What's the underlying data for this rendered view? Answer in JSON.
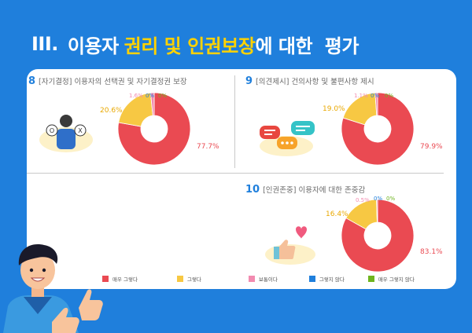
{
  "title": {
    "roman": "III.",
    "part1": "이용자",
    "highlight1": "권리 및 인권보장",
    "part2": "에 대한  평가"
  },
  "colors": {
    "very_yes": "#ea4a52",
    "yes": "#f7c843",
    "neutral": "#f28bb0",
    "no": "#1f7fdc",
    "very_no": "#6fb41e",
    "accent": "#1f7fdc"
  },
  "legend": [
    {
      "label": "매우 그렇다",
      "color": "#ea4a52"
    },
    {
      "label": "그렇다",
      "color": "#f7c843"
    },
    {
      "label": "보통이다",
      "color": "#f28bb0"
    },
    {
      "label": "그렇지 않다",
      "color": "#1f7fdc"
    },
    {
      "label": "매우 그렇지 않다",
      "color": "#6fb41e"
    }
  ],
  "sections": [
    {
      "num": "8",
      "text": "[자기결정] 이용자의 선택권 및 자기결정권 보장"
    },
    {
      "num": "9",
      "text": "[의견제시] 건의사항 및 불편사항 제시"
    },
    {
      "num": "10",
      "text": "[인권존중] 이용자에 대한 존중감"
    }
  ],
  "chart_data": [
    {
      "type": "pie",
      "categories": [
        "매우 그렇다",
        "그렇다",
        "보통이다",
        "그렇지 않다",
        "매우 그렇지 않다"
      ],
      "values": [
        77.7,
        20.6,
        1.6,
        0,
        0
      ],
      "labels": [
        "77.7%",
        "20.6%",
        "1.6%",
        "0%",
        "0%"
      ]
    },
    {
      "type": "pie",
      "categories": [
        "매우 그렇다",
        "그렇다",
        "보통이다",
        "그렇지 않다",
        "매우 그렇지 않다"
      ],
      "values": [
        79.9,
        19.0,
        1.1,
        0,
        0
      ],
      "labels": [
        "79.9%",
        "19.0%",
        "1.1%",
        "0%",
        "0%"
      ]
    },
    {
      "type": "pie",
      "categories": [
        "매우 그렇다",
        "그렇다",
        "보통이다",
        "그렇지 않다",
        "매우 그렇지 않다"
      ],
      "values": [
        83.1,
        16.4,
        0.5,
        0,
        0
      ],
      "labels": [
        "83.1%",
        "16.4%",
        "0.5%",
        "0%",
        "0%"
      ]
    }
  ]
}
